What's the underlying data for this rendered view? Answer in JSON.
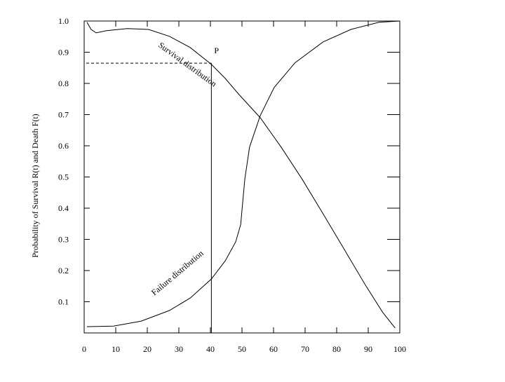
{
  "chart_data": {
    "type": "line",
    "ylabel": "Probability  of  Survival R(t) and Death F(t)",
    "xlim": [
      0,
      100
    ],
    "ylim": [
      0,
      1
    ],
    "xticks": [
      0,
      10,
      20,
      30,
      40,
      50,
      60,
      70,
      80,
      90,
      100
    ],
    "yticks": [
      0.1,
      0.2,
      0.3,
      0.4,
      0.5,
      0.6,
      0.7,
      0.8,
      0.9,
      {
        "value": 1,
        "label": "1.0"
      }
    ],
    "series": [
      {
        "name": "Survival  distribution",
        "color": "#000000",
        "x": [
          0.9,
          2.2,
          3.8,
          7.1,
          13.7,
          20.4,
          27,
          33.6,
          40.3,
          44.7,
          49.1,
          55.8,
          62.4,
          69,
          75.7,
          82.3,
          88.9,
          94.5,
          98.5
        ],
        "values": [
          0.996,
          0.973,
          0.962,
          0.969,
          0.976,
          0.973,
          0.951,
          0.915,
          0.861,
          0.816,
          0.764,
          0.69,
          0.596,
          0.494,
          0.382,
          0.27,
          0.157,
          0.067,
          0.016
        ]
      },
      {
        "name": "Failure  distribution",
        "color": "#000000",
        "x": [
          0.9,
          9.3,
          18.1,
          27,
          33.6,
          40.3,
          44.7,
          48,
          49.6,
          50.2,
          50.9,
          52.4,
          55.8,
          60.2,
          66.8,
          75.7,
          84.5,
          93.4,
          100
        ],
        "values": [
          0.02,
          0.022,
          0.038,
          0.072,
          0.112,
          0.173,
          0.231,
          0.292,
          0.348,
          0.416,
          0.494,
          0.596,
          0.697,
          0.787,
          0.866,
          0.933,
          0.973,
          0.996,
          1.0
        ]
      }
    ],
    "marker": {
      "label": "P",
      "x": 40.3,
      "y": 0.865
    }
  }
}
